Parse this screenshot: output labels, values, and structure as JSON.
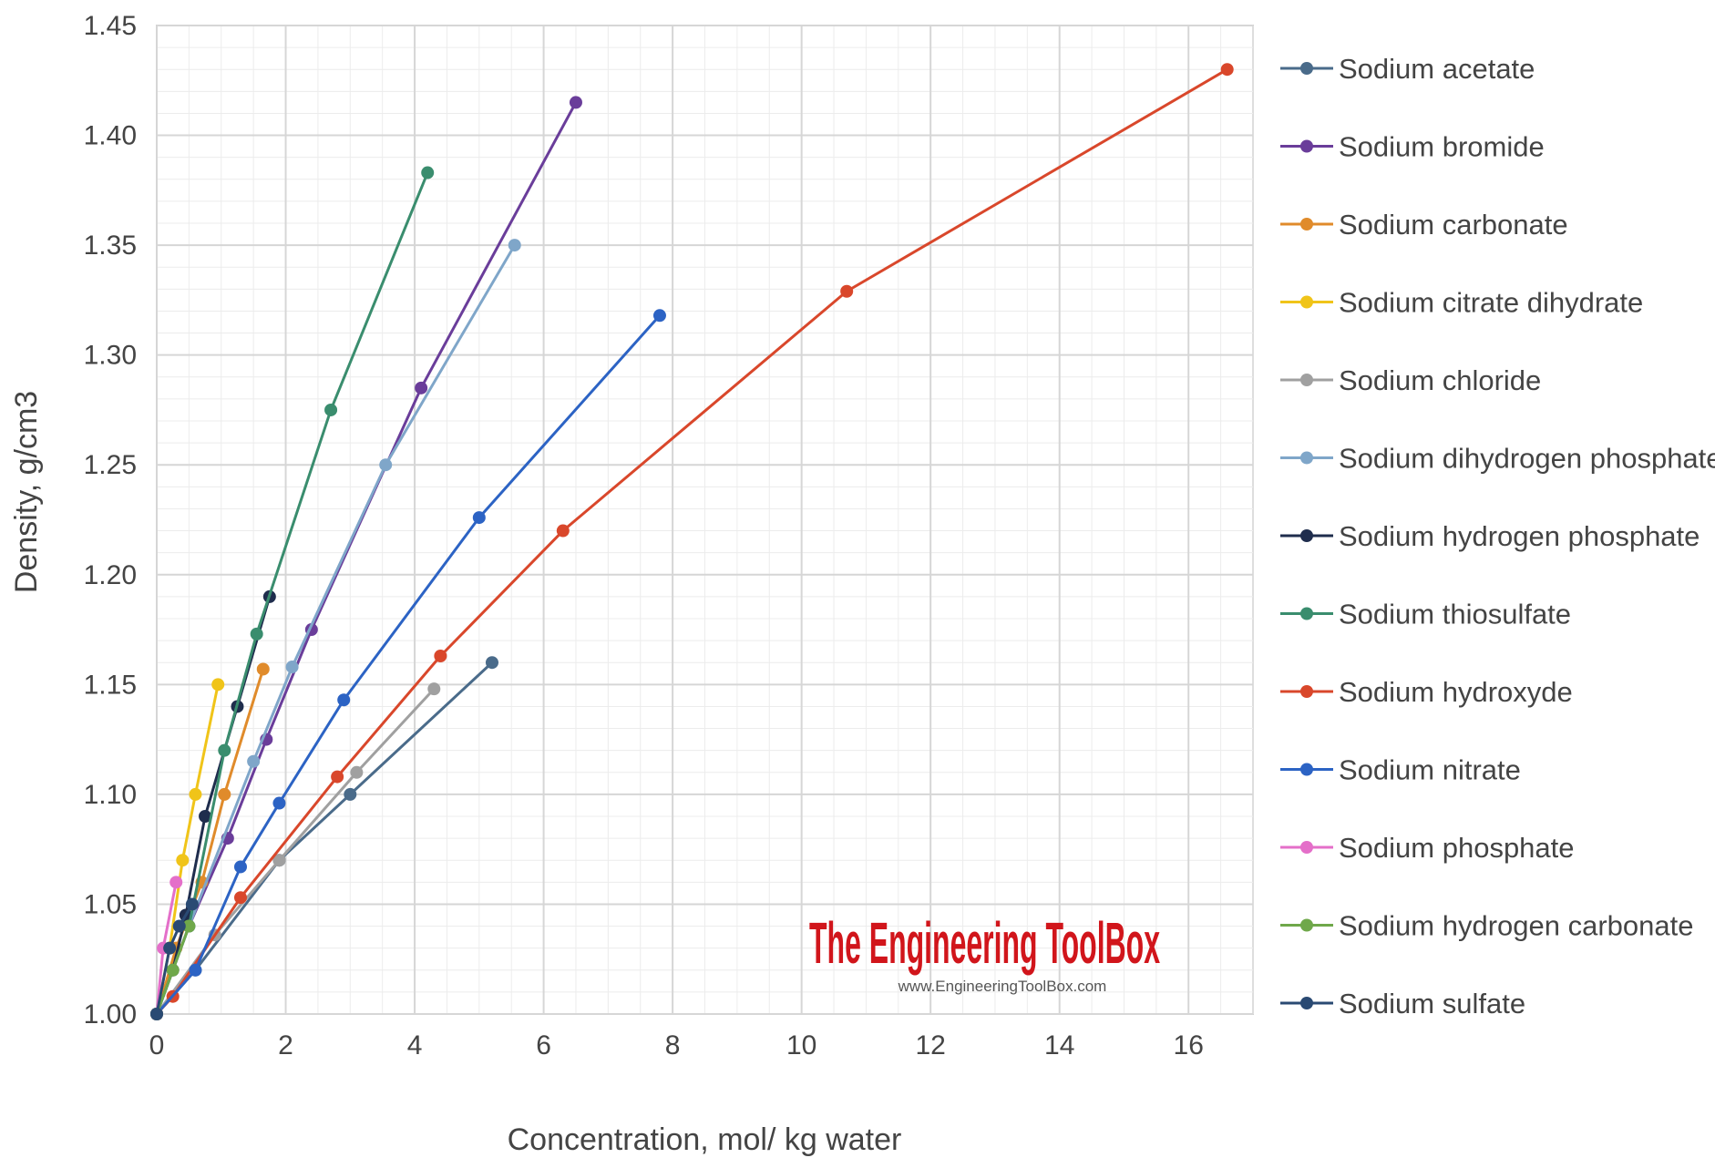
{
  "chart_data": {
    "type": "line",
    "title": "",
    "xlabel": "Concentration, mol/ kg water",
    "ylabel": "Density, g/cm3",
    "xlim": [
      0,
      17
    ],
    "ylim": [
      1.0,
      1.45
    ],
    "x_ticks": [
      0,
      2,
      4,
      6,
      8,
      10,
      12,
      14,
      16
    ],
    "y_ticks": [
      "1.00",
      "1.05",
      "1.10",
      "1.15",
      "1.20",
      "1.25",
      "1.30",
      "1.35",
      "1.40",
      "1.45"
    ],
    "x_minor_step": 0.5,
    "y_minor_step": 0.01,
    "grid": true,
    "legend_position": "right",
    "series": [
      {
        "name": "Sodium acetate",
        "color": "#4a6b8a",
        "points": [
          [
            0,
            1.0
          ],
          [
            0.6,
            1.02
          ],
          [
            1.9,
            1.07
          ],
          [
            3.0,
            1.1
          ],
          [
            5.2,
            1.16
          ]
        ]
      },
      {
        "name": "Sodium bromide",
        "color": "#6a3d9a",
        "points": [
          [
            0,
            1.0
          ],
          [
            0.5,
            1.04
          ],
          [
            1.1,
            1.08
          ],
          [
            1.7,
            1.125
          ],
          [
            2.4,
            1.175
          ],
          [
            4.1,
            1.285
          ],
          [
            6.5,
            1.415
          ]
        ]
      },
      {
        "name": "Sodium carbonate",
        "color": "#e08b2b",
        "points": [
          [
            0,
            1.0
          ],
          [
            0.3,
            1.03
          ],
          [
            0.7,
            1.06
          ],
          [
            1.05,
            1.1
          ],
          [
            1.65,
            1.157
          ]
        ]
      },
      {
        "name": "Sodium citrate dihydrate",
        "color": "#f0c419",
        "points": [
          [
            0,
            1.0
          ],
          [
            0.2,
            1.03
          ],
          [
            0.4,
            1.07
          ],
          [
            0.6,
            1.1
          ],
          [
            0.95,
            1.15
          ]
        ]
      },
      {
        "name": "Sodium chloride",
        "color": "#a0a0a0",
        "points": [
          [
            0,
            1.0
          ],
          [
            0.9,
            1.036
          ],
          [
            1.9,
            1.07
          ],
          [
            3.1,
            1.11
          ],
          [
            4.3,
            1.148
          ]
        ]
      },
      {
        "name": "Sodium dihydrogen phosphate",
        "color": "#7fa6c9",
        "points": [
          [
            0,
            1.0
          ],
          [
            0.5,
            1.04
          ],
          [
            1.5,
            1.115
          ],
          [
            2.1,
            1.158
          ],
          [
            3.55,
            1.25
          ],
          [
            5.55,
            1.35
          ]
        ]
      },
      {
        "name": "Sodium hydrogen phosphate",
        "color": "#1f2d4d",
        "points": [
          [
            0,
            1.0
          ],
          [
            0.25,
            1.02
          ],
          [
            0.45,
            1.045
          ],
          [
            0.75,
            1.09
          ],
          [
            1.25,
            1.14
          ],
          [
            1.75,
            1.19
          ]
        ]
      },
      {
        "name": "Sodium thiosulfate",
        "color": "#3a8d6e",
        "points": [
          [
            0,
            1.0
          ],
          [
            0.5,
            1.04
          ],
          [
            1.05,
            1.12
          ],
          [
            1.55,
            1.173
          ],
          [
            2.7,
            1.275
          ],
          [
            4.2,
            1.383
          ]
        ]
      },
      {
        "name": "Sodium hydroxyde",
        "color": "#d9472b",
        "points": [
          [
            0,
            1.0
          ],
          [
            0.25,
            1.008
          ],
          [
            1.3,
            1.053
          ],
          [
            2.8,
            1.108
          ],
          [
            4.4,
            1.163
          ],
          [
            6.3,
            1.22
          ],
          [
            10.7,
            1.329
          ],
          [
            16.6,
            1.43
          ]
        ]
      },
      {
        "name": "Sodium nitrate",
        "color": "#2c63c4",
        "points": [
          [
            0,
            1.0
          ],
          [
            0.6,
            1.02
          ],
          [
            1.3,
            1.067
          ],
          [
            1.9,
            1.096
          ],
          [
            2.9,
            1.143
          ],
          [
            5.0,
            1.226
          ],
          [
            7.8,
            1.318
          ]
        ]
      },
      {
        "name": "Sodium phosphate",
        "color": "#e46fc9",
        "points": [
          [
            0,
            1.0
          ],
          [
            0.1,
            1.03
          ],
          [
            0.3,
            1.06
          ]
        ]
      },
      {
        "name": "Sodium hydrogen carbonate",
        "color": "#6fa84a",
        "points": [
          [
            0,
            1.0
          ],
          [
            0.25,
            1.02
          ],
          [
            0.5,
            1.04
          ]
        ]
      },
      {
        "name": "Sodium sulfate",
        "color": "#2a4a73",
        "points": [
          [
            0,
            1.0
          ],
          [
            0.2,
            1.03
          ],
          [
            0.35,
            1.04
          ],
          [
            0.55,
            1.05
          ]
        ]
      }
    ]
  },
  "watermark": {
    "title": "The Engineering ToolBox",
    "url": "www.EngineeringToolBox.com"
  }
}
